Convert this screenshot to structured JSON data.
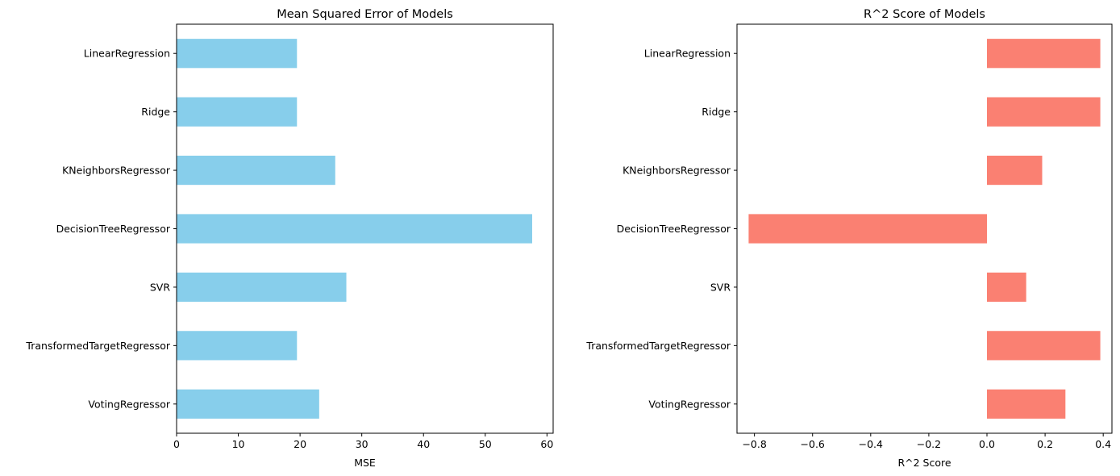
{
  "chart_data": [
    {
      "type": "bar",
      "orientation": "horizontal",
      "title": "Mean Squared Error of Models",
      "xlabel": "MSE",
      "ylabel": "",
      "categories": [
        "LinearRegression",
        "Ridge",
        "KNeighborsRegressor",
        "DecisionTreeRegressor",
        "SVR",
        "TransformedTargetRegressor",
        "VotingRegressor"
      ],
      "values": [
        19.5,
        19.5,
        25.7,
        57.6,
        27.5,
        19.5,
        23.1
      ],
      "xlim": [
        0,
        61
      ],
      "xticks": [
        0,
        10,
        20,
        30,
        40,
        50,
        60
      ],
      "xtick_labels": [
        "0",
        "10",
        "20",
        "30",
        "40",
        "50",
        "60"
      ],
      "color": "#87CEEB",
      "grid": false
    },
    {
      "type": "bar",
      "orientation": "horizontal",
      "title": "R^2 Score of Models",
      "xlabel": "R^2 Score",
      "ylabel": "",
      "categories": [
        "LinearRegression",
        "Ridge",
        "KNeighborsRegressor",
        "DecisionTreeRegressor",
        "SVR",
        "TransformedTargetRegressor",
        "VotingRegressor"
      ],
      "values": [
        0.39,
        0.39,
        0.19,
        -0.82,
        0.135,
        0.39,
        0.27
      ],
      "xlim": [
        -0.86,
        0.43
      ],
      "xticks": [
        -0.8,
        -0.6,
        -0.4,
        -0.2,
        0.0,
        0.2,
        0.4
      ],
      "xtick_labels": [
        "−0.8",
        "−0.6",
        "−0.4",
        "−0.2",
        "0.0",
        "0.2",
        "0.4"
      ],
      "color": "#FA8072",
      "grid": false
    }
  ]
}
